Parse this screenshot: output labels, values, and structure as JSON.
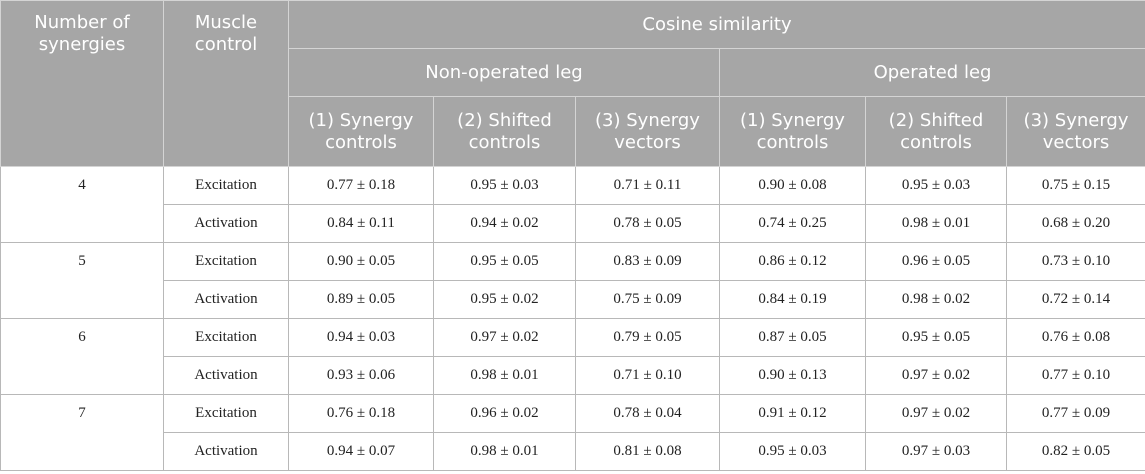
{
  "header": {
    "num_synergies": "Number of synergies",
    "muscle_control": "Muscle control",
    "cosine_similarity": "Cosine similarity",
    "legs": [
      "Non-operated leg",
      "Operated leg"
    ],
    "subcols": [
      "(1) Synergy controls",
      "(2) Shifted controls",
      "(3) Synergy vectors"
    ]
  },
  "groups": [
    {
      "synergies": "4",
      "rows": [
        {
          "control": "Excitation",
          "values": [
            "0.77 ± 0.18",
            "0.95 ± 0.03",
            "0.71 ± 0.11",
            "0.90 ± 0.08",
            "0.95 ± 0.03",
            "0.75 ± 0.15"
          ]
        },
        {
          "control": "Activation",
          "values": [
            "0.84 ± 0.11",
            "0.94 ± 0.02",
            "0.78 ± 0.05",
            "0.74 ± 0.25",
            "0.98 ± 0.01",
            "0.68 ± 0.20"
          ]
        }
      ]
    },
    {
      "synergies": "5",
      "rows": [
        {
          "control": "Excitation",
          "values": [
            "0.90 ± 0.05",
            "0.95 ± 0.05",
            "0.83 ± 0.09",
            "0.86 ± 0.12",
            "0.96 ± 0.05",
            "0.73 ± 0.10"
          ]
        },
        {
          "control": "Activation",
          "values": [
            "0.89 ± 0.05",
            "0.95 ± 0.02",
            "0.75 ± 0.09",
            "0.84 ± 0.19",
            "0.98 ± 0.02",
            "0.72 ± 0.14"
          ]
        }
      ]
    },
    {
      "synergies": "6",
      "rows": [
        {
          "control": "Excitation",
          "values": [
            "0.94 ± 0.03",
            "0.97 ± 0.02",
            "0.79 ± 0.05",
            "0.87 ± 0.05",
            "0.95 ± 0.05",
            "0.76 ± 0.08"
          ]
        },
        {
          "control": "Activation",
          "values": [
            "0.93 ± 0.06",
            "0.98 ± 0.01",
            "0.71 ± 0.10",
            "0.90 ± 0.13",
            "0.97 ± 0.02",
            "0.77 ± 0.10"
          ]
        }
      ]
    },
    {
      "synergies": "7",
      "rows": [
        {
          "control": "Excitation",
          "values": [
            "0.76 ± 0.18",
            "0.96 ± 0.02",
            "0.78 ± 0.04",
            "0.91 ± 0.12",
            "0.97 ± 0.02",
            "0.77 ± 0.09"
          ]
        },
        {
          "control": "Activation",
          "values": [
            "0.94 ± 0.07",
            "0.98 ± 0.01",
            "0.81 ± 0.08",
            "0.95 ± 0.03",
            "0.97 ± 0.03",
            "0.82 ± 0.05"
          ]
        }
      ]
    }
  ]
}
